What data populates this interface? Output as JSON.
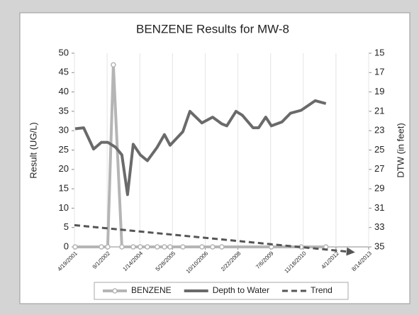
{
  "chart_data": {
    "type": "line",
    "title": "BENZENE Results for MW-8",
    "ylabel": "Result (UG/L)",
    "y2label": "DTW (in feet)",
    "xlim": [
      "4/19/2001",
      "8/14/2013"
    ],
    "xticks": [
      "4/19/2001",
      "9/1/2002",
      "1/14/2004",
      "5/28/2005",
      "10/10/2006",
      "2/22/2008",
      "7/6/2009",
      "11/18/2010",
      "4/1/2012",
      "8/14/2013"
    ],
    "ylim": [
      0,
      50
    ],
    "yticks": [
      0,
      5,
      10,
      15,
      20,
      25,
      30,
      35,
      40,
      45,
      50
    ],
    "y2lim": [
      35,
      15
    ],
    "y2ticks": [
      15,
      17,
      19,
      21,
      23,
      25,
      27,
      29,
      31,
      33,
      35
    ],
    "y2_inverted": true,
    "grid": "x",
    "legend": "bottom",
    "series": [
      {
        "name": "BENZENE",
        "color": "#b5b5b5",
        "axis": "y",
        "markers": true,
        "x": [
          "2001-04-30",
          "2002-06-05",
          "2002-09-10",
          "2002-12-05",
          "2003-04-14",
          "2003-10-05",
          "2004-01-21",
          "2004-05-09",
          "2004-10-07",
          "2005-01-24",
          "2005-04-21",
          "2005-11-02",
          "2006-08-21",
          "2007-01-31",
          "2007-06-21",
          "2009-07-18",
          "2010-10-16",
          "2011-10-30"
        ],
        "values": [
          0,
          0,
          0,
          47,
          0,
          0,
          0,
          0,
          0,
          0,
          0,
          0,
          0,
          0,
          0,
          0,
          0,
          0
        ]
      },
      {
        "name": "Depth to Water",
        "color": "#6a6a6a",
        "axis": "y2",
        "markers": false,
        "x": [
          "2001-04-30",
          "2001-09-07",
          "2002-02-06",
          "2002-06-05",
          "2002-09-10",
          "2003-01-07",
          "2003-04-14",
          "2003-07-10",
          "2003-10-05",
          "2004-01-21",
          "2004-05-09",
          "2004-10-07",
          "2005-01-24",
          "2005-04-21",
          "2005-11-02",
          "2006-02-18",
          "2006-08-21",
          "2007-01-31",
          "2007-06-21",
          "2007-09-05",
          "2008-01-24",
          "2008-04-30",
          "2008-10-10",
          "2009-01-04",
          "2009-04-23",
          "2009-07-18",
          "2009-12-27",
          "2010-05-06",
          "2010-10-16",
          "2011-05-21",
          "2011-10-30"
        ],
        "values": [
          22.8,
          22.7,
          24.9,
          24.2,
          24.2,
          24.7,
          25.5,
          29.6,
          24.4,
          25.5,
          26.1,
          24.7,
          23.4,
          24.5,
          23.1,
          21.0,
          22.2,
          21.6,
          22.3,
          22.5,
          21.0,
          21.4,
          22.7,
          22.7,
          21.6,
          22.5,
          22.1,
          21.2,
          20.9,
          19.9,
          20.2
        ]
      },
      {
        "name": "Trend",
        "color": "#555555",
        "axis": "y",
        "dashed": true,
        "markers": false,
        "x": [
          "2001-04-19",
          "2012-11-14"
        ],
        "values": [
          5.6,
          -1.3
        ]
      }
    ]
  }
}
